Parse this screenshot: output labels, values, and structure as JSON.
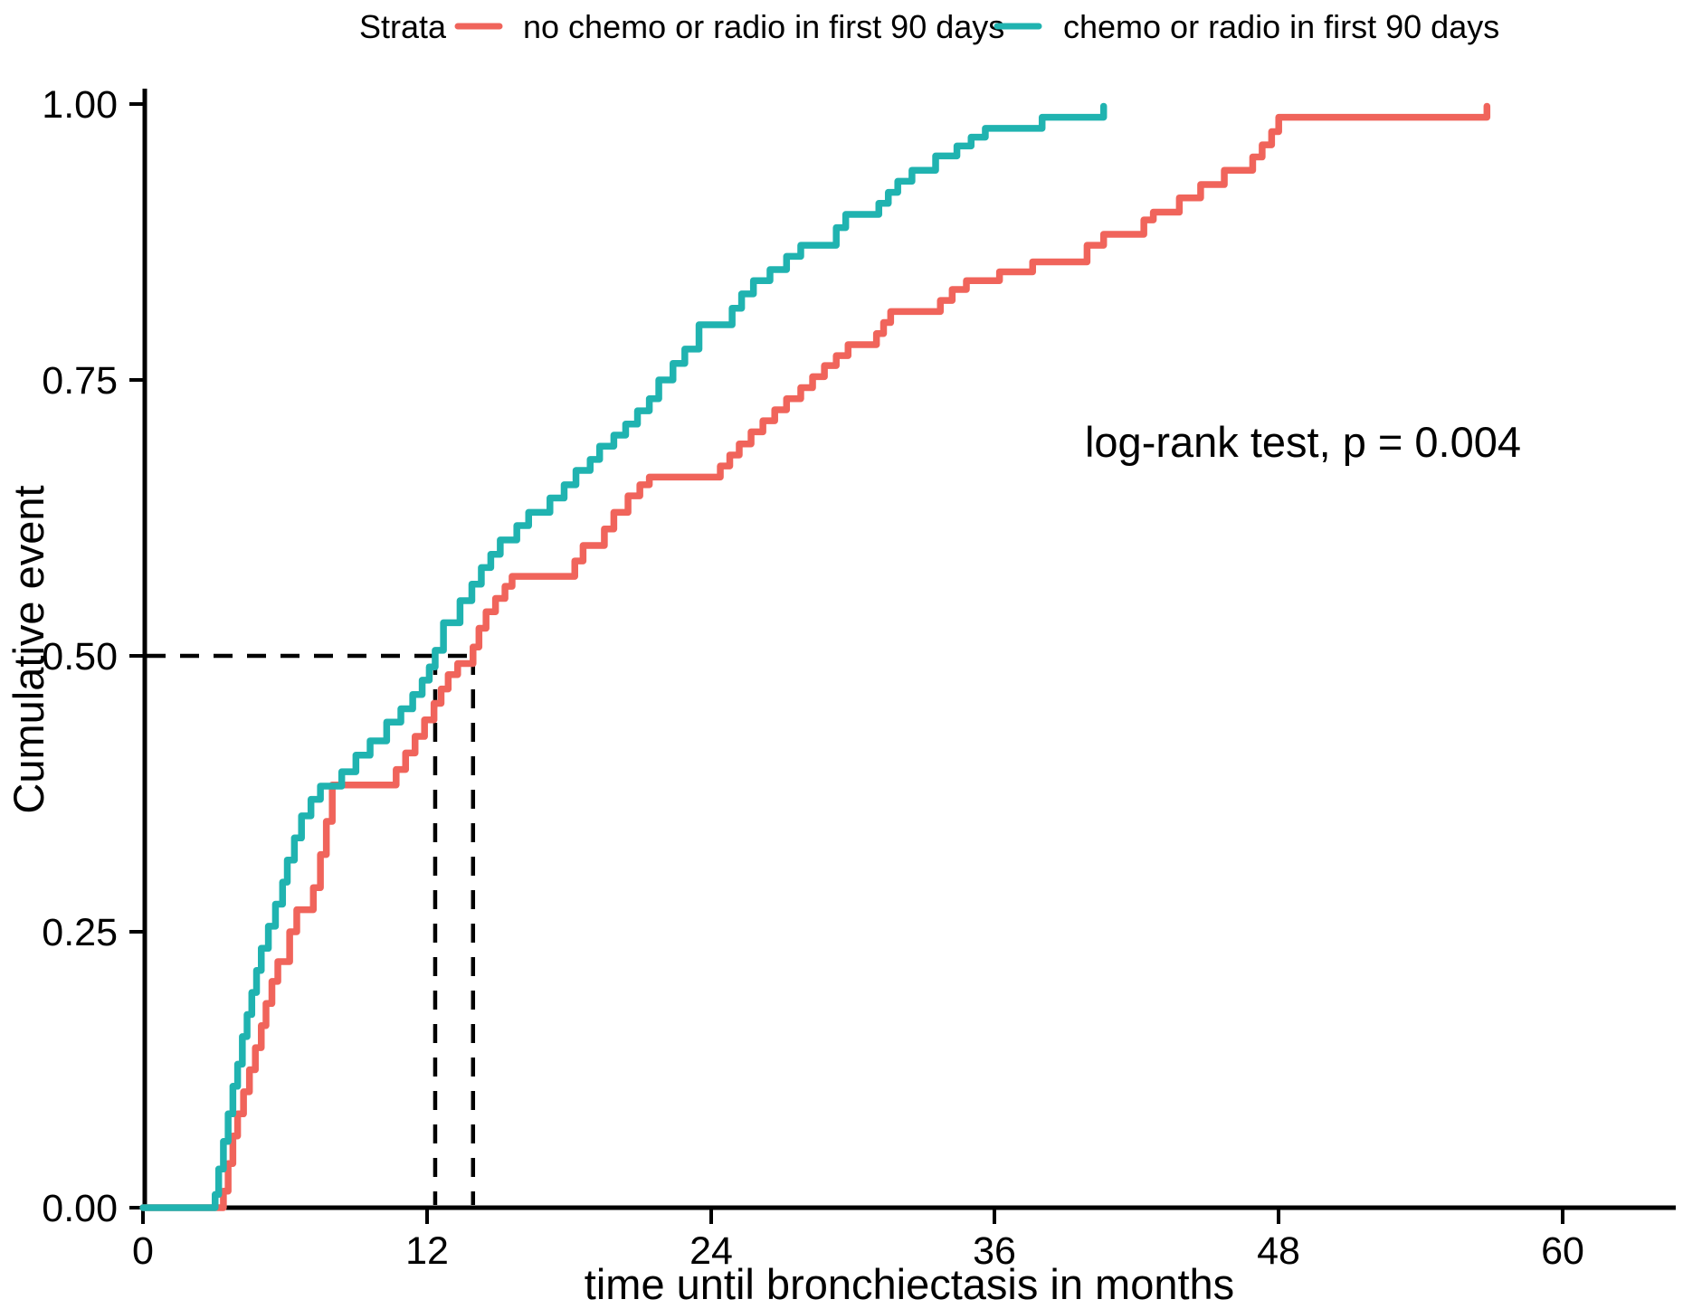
{
  "chart_data": {
    "type": "line",
    "subtype": "kaplan-meier-cumulative-event-step",
    "title": "",
    "xlabel": "time until bronchiectasis in months",
    "ylabel": "Cumulative event",
    "xlim": [
      0,
      64.5
    ],
    "ylim": [
      0,
      1
    ],
    "x_ticks": [
      0,
      12,
      24,
      36,
      48,
      60
    ],
    "x_tick_labels": [
      "0",
      "12",
      "24",
      "36",
      "48",
      "60"
    ],
    "y_ticks": [
      0,
      0.25,
      0.5,
      0.75,
      1
    ],
    "y_tick_labels": [
      "0.00",
      "0.25",
      "0.50",
      "0.75",
      "1.00"
    ],
    "grid": "off",
    "legend_position": "top",
    "legend_title": "Strata",
    "annotation": "log-rank test, p = 0.004",
    "reference_lines": {
      "y": 0.5,
      "x": [
        12.35,
        13.95
      ]
    },
    "series": [
      {
        "name": "no chemo or radio in first 90 days",
        "color": "#F0645B",
        "median_months": 13.95,
        "points": [
          [
            0,
            0
          ],
          [
            3.4,
            0.015
          ],
          [
            3.6,
            0.04
          ],
          [
            3.8,
            0.065
          ],
          [
            4.0,
            0.085
          ],
          [
            4.25,
            0.105
          ],
          [
            4.5,
            0.125
          ],
          [
            4.75,
            0.145
          ],
          [
            5.0,
            0.165
          ],
          [
            5.2,
            0.185
          ],
          [
            5.45,
            0.205
          ],
          [
            5.7,
            0.223
          ],
          [
            6.2,
            0.25
          ],
          [
            6.5,
            0.27
          ],
          [
            7.2,
            0.29
          ],
          [
            7.5,
            0.32
          ],
          [
            7.75,
            0.35
          ],
          [
            8.0,
            0.383
          ],
          [
            10.7,
            0.397
          ],
          [
            11.1,
            0.412
          ],
          [
            11.5,
            0.427
          ],
          [
            11.9,
            0.442
          ],
          [
            12.3,
            0.457
          ],
          [
            12.6,
            0.47
          ],
          [
            12.9,
            0.483
          ],
          [
            13.3,
            0.493
          ],
          [
            13.95,
            0.508
          ],
          [
            14.2,
            0.525
          ],
          [
            14.5,
            0.54
          ],
          [
            14.9,
            0.552
          ],
          [
            15.3,
            0.563
          ],
          [
            15.6,
            0.572
          ],
          [
            18.25,
            0.586
          ],
          [
            18.6,
            0.6
          ],
          [
            19.5,
            0.615
          ],
          [
            19.9,
            0.63
          ],
          [
            20.5,
            0.645
          ],
          [
            21.0,
            0.655
          ],
          [
            21.4,
            0.662
          ],
          [
            24.4,
            0.672
          ],
          [
            24.8,
            0.682
          ],
          [
            25.2,
            0.692
          ],
          [
            25.7,
            0.703
          ],
          [
            26.2,
            0.713
          ],
          [
            26.7,
            0.723
          ],
          [
            27.2,
            0.733
          ],
          [
            27.8,
            0.743
          ],
          [
            28.3,
            0.753
          ],
          [
            28.8,
            0.763
          ],
          [
            29.3,
            0.772
          ],
          [
            29.8,
            0.782
          ],
          [
            31.0,
            0.792
          ],
          [
            31.3,
            0.802
          ],
          [
            31.6,
            0.812
          ],
          [
            33.7,
            0.822
          ],
          [
            34.2,
            0.832
          ],
          [
            34.8,
            0.84
          ],
          [
            36.2,
            0.848
          ],
          [
            37.6,
            0.857
          ],
          [
            39.9,
            0.872
          ],
          [
            40.6,
            0.882
          ],
          [
            42.3,
            0.895
          ],
          [
            42.7,
            0.902
          ],
          [
            43.8,
            0.915
          ],
          [
            44.7,
            0.927
          ],
          [
            45.7,
            0.94
          ],
          [
            46.9,
            0.952
          ],
          [
            47.3,
            0.963
          ],
          [
            47.7,
            0.975
          ],
          [
            48.0,
            0.988
          ],
          [
            56.8,
            0.998
          ]
        ]
      },
      {
        "name": "chemo or radio in first 90 days",
        "color": "#20B3B0",
        "median_months": 12.35,
        "points": [
          [
            0,
            0
          ],
          [
            3.05,
            0.012
          ],
          [
            3.2,
            0.035
          ],
          [
            3.4,
            0.06
          ],
          [
            3.6,
            0.085
          ],
          [
            3.8,
            0.11
          ],
          [
            4.0,
            0.13
          ],
          [
            4.2,
            0.155
          ],
          [
            4.4,
            0.175
          ],
          [
            4.6,
            0.195
          ],
          [
            4.8,
            0.215
          ],
          [
            5.0,
            0.235
          ],
          [
            5.3,
            0.255
          ],
          [
            5.6,
            0.275
          ],
          [
            5.9,
            0.295
          ],
          [
            6.1,
            0.315
          ],
          [
            6.4,
            0.335
          ],
          [
            6.7,
            0.355
          ],
          [
            7.1,
            0.37
          ],
          [
            7.5,
            0.382
          ],
          [
            8.4,
            0.395
          ],
          [
            9.0,
            0.41
          ],
          [
            9.6,
            0.423
          ],
          [
            10.3,
            0.44
          ],
          [
            10.9,
            0.452
          ],
          [
            11.4,
            0.465
          ],
          [
            11.8,
            0.478
          ],
          [
            12.1,
            0.49
          ],
          [
            12.35,
            0.505
          ],
          [
            12.7,
            0.53
          ],
          [
            13.4,
            0.55
          ],
          [
            13.9,
            0.565
          ],
          [
            14.3,
            0.58
          ],
          [
            14.7,
            0.592
          ],
          [
            15.1,
            0.605
          ],
          [
            15.8,
            0.618
          ],
          [
            16.3,
            0.63
          ],
          [
            17.2,
            0.643
          ],
          [
            17.8,
            0.655
          ],
          [
            18.3,
            0.668
          ],
          [
            18.9,
            0.678
          ],
          [
            19.3,
            0.69
          ],
          [
            19.9,
            0.7
          ],
          [
            20.4,
            0.71
          ],
          [
            20.9,
            0.722
          ],
          [
            21.4,
            0.733
          ],
          [
            21.8,
            0.75
          ],
          [
            22.4,
            0.765
          ],
          [
            22.9,
            0.778
          ],
          [
            23.5,
            0.8
          ],
          [
            24.9,
            0.815
          ],
          [
            25.3,
            0.828
          ],
          [
            25.8,
            0.84
          ],
          [
            26.5,
            0.85
          ],
          [
            27.2,
            0.862
          ],
          [
            27.8,
            0.872
          ],
          [
            29.3,
            0.888
          ],
          [
            29.7,
            0.9
          ],
          [
            31.1,
            0.91
          ],
          [
            31.5,
            0.92
          ],
          [
            31.9,
            0.93
          ],
          [
            32.5,
            0.94
          ],
          [
            33.5,
            0.953
          ],
          [
            34.4,
            0.962
          ],
          [
            35.0,
            0.97
          ],
          [
            35.6,
            0.978
          ],
          [
            38.0,
            0.988
          ],
          [
            40.6,
            0.998
          ]
        ]
      }
    ]
  },
  "legend": {
    "title": "Strata",
    "items": [
      {
        "label": "no chemo or radio in first 90 days",
        "color": "#F0645B"
      },
      {
        "label": "chemo or radio in first 90 days",
        "color": "#20B3B0"
      }
    ]
  },
  "axes": {
    "x_label": "time until bronchiectasis in months",
    "y_label": "Cumulative event"
  },
  "annotation": {
    "text": "log-rank test, p = 0.004"
  },
  "colors": {
    "axis": "#000000",
    "reference_dash": "#000000",
    "background": "#ffffff"
  }
}
